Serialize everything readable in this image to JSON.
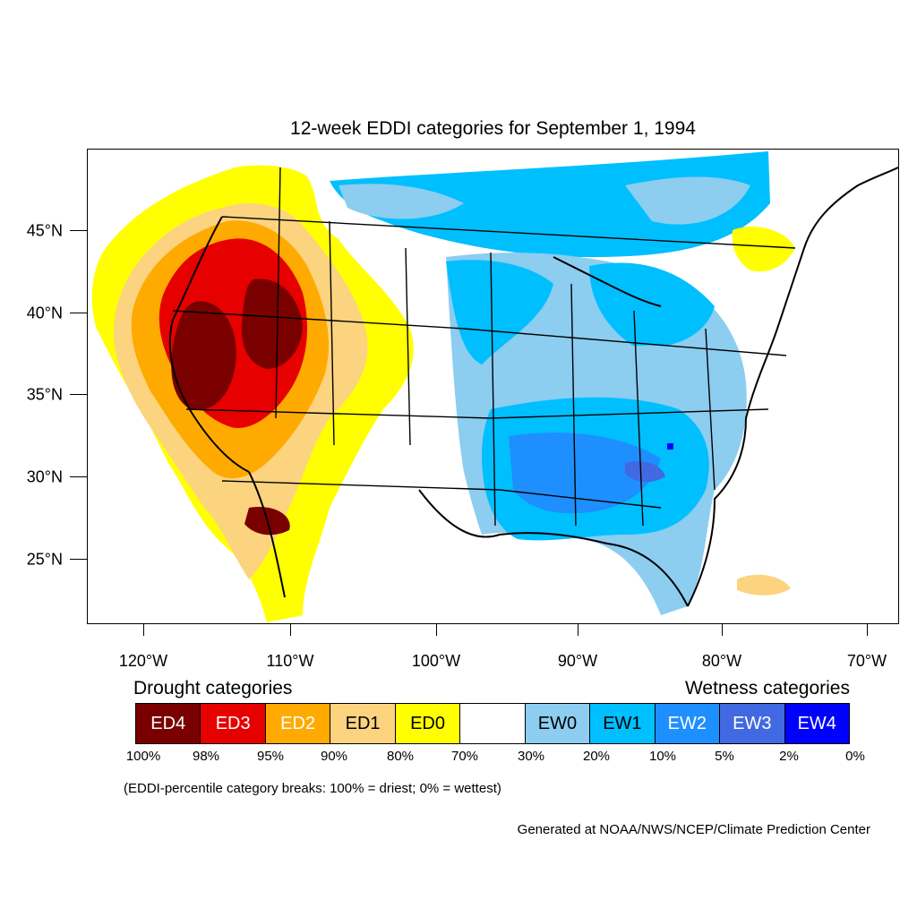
{
  "title": "12-week EDDI categories for September 1, 1994",
  "map": {
    "latitude_labels": [
      "45°N",
      "40°N",
      "35°N",
      "30°N",
      "25°N"
    ],
    "longitude_labels": [
      "120°W",
      "110°W",
      "100°W",
      "90°W",
      "80°W",
      "70°W"
    ],
    "region": "contiguous-united-states",
    "pattern": "drought (ED) across the West and Southwest; wetness (EW) across the Midwest, Great Lakes, Southeast and Northeast"
  },
  "legend": {
    "drought_heading": "Drought categories",
    "wetness_heading": "Wetness categories",
    "categories": [
      {
        "label": "ED4",
        "color": "#7a0000",
        "text_color": "#ffffff"
      },
      {
        "label": "ED3",
        "color": "#e60000",
        "text_color": "#ffffff"
      },
      {
        "label": "ED2",
        "color": "#ffaa00",
        "text_color": "#ffffff"
      },
      {
        "label": "ED1",
        "color": "#fcd37f",
        "text_color": "#000000"
      },
      {
        "label": "ED0",
        "color": "#ffff00",
        "text_color": "#000000"
      },
      {
        "label": "",
        "color": "#ffffff",
        "text_color": "#000000"
      },
      {
        "label": "EW0",
        "color": "#8ccdf0",
        "text_color": "#000000"
      },
      {
        "label": "EW1",
        "color": "#00bfff",
        "text_color": "#000000"
      },
      {
        "label": "EW2",
        "color": "#1e8fff",
        "text_color": "#ffffff"
      },
      {
        "label": "EW3",
        "color": "#4169e1",
        "text_color": "#ffffff"
      },
      {
        "label": "EW4",
        "color": "#0000ff",
        "text_color": "#ffffff"
      }
    ],
    "breaks": [
      "100%",
      "98%",
      "95%",
      "90%",
      "80%",
      "70%",
      "30%",
      "20%",
      "10%",
      "5%",
      "2%",
      "0%"
    ]
  },
  "note": "(EDDI-percentile category breaks: 100% = driest; 0% = wettest)",
  "credit": "Generated at NOAA/NWS/NCEP/Climate Prediction Center"
}
